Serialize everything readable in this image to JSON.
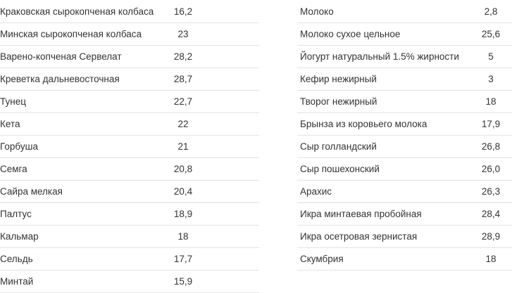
{
  "left": {
    "rows": [
      [
        "Краковская сырокопченая колбаса",
        "16,2"
      ],
      [
        "Минская сырокопченая колбаса",
        "23"
      ],
      [
        "Варено-копченая Сервелат",
        "28,2"
      ],
      [
        "Креветка дальневосточная",
        "28,7"
      ],
      [
        "Тунец",
        "22,7"
      ],
      [
        "Кета",
        "22"
      ],
      [
        "Горбуша",
        "21"
      ],
      [
        "Семга",
        "20,8"
      ],
      [
        "Сайра мелкая",
        "20,4"
      ],
      [
        "Палтус",
        "18,9"
      ],
      [
        "Кальмар",
        "18"
      ],
      [
        "Сельдь",
        "17,7"
      ],
      [
        "Минтай",
        "15,9"
      ]
    ]
  },
  "right": {
    "rows": [
      [
        "Молоко",
        "2,8"
      ],
      [
        "Молоко сухое цельное",
        "25,6"
      ],
      [
        "Йогурт натуральный 1.5% жирности",
        "5"
      ],
      [
        "Кефир нежирный",
        "3"
      ],
      [
        "Творог нежирный",
        "18"
      ],
      [
        "Брынза из коровьего молока",
        "17,9"
      ],
      [
        "Сыр голландский",
        "26,8"
      ],
      [
        "Сыр пошехонский",
        "26,0"
      ],
      [
        "Арахис",
        "26,3"
      ],
      [
        "Икра минтаевая пробойная",
        "28,4"
      ],
      [
        "Икра осетровая зернистая",
        "28,9"
      ],
      [
        "Скумбрия",
        "18"
      ]
    ]
  }
}
